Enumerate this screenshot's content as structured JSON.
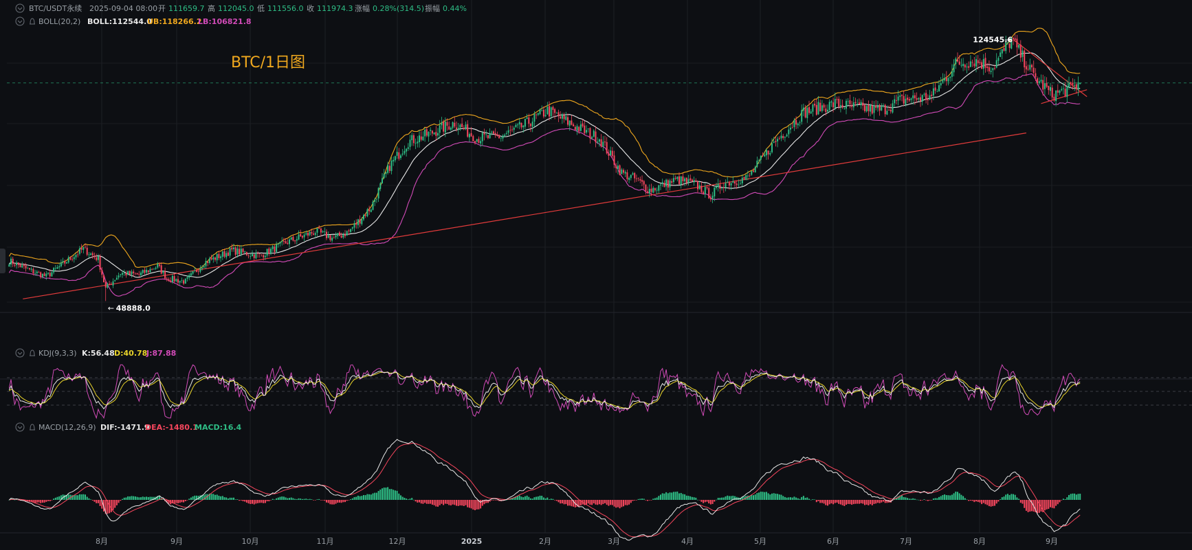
{
  "header": {
    "symbol": "BTC/USDT永续",
    "datetime": "2025-09-04 08:00",
    "open_label": "开",
    "open": "111659.7",
    "high_label": "高",
    "high": "112045.0",
    "low_label": "低",
    "low": "111556.0",
    "close_label": "收",
    "close": "111974.3",
    "change_label": "涨幅",
    "change": "0.28%(314.5)",
    "amplitude_label": "振幅",
    "amplitude": "0.44%"
  },
  "boll": {
    "name": "BOLL(20,2)",
    "mid": "BOLL:112544.0",
    "ub": "UB:118266.2",
    "lb": "LB:106821.8"
  },
  "kdj": {
    "name": "KDJ(9,3,3)",
    "k": "K:56.48",
    "d": "D:40.78",
    "j": "J:87.88"
  },
  "macd": {
    "name": "MACD(12,26,9)",
    "dif": "DIF:-1471.9",
    "dea": "DEA:-1480.1",
    "macd": "MACD:16.4"
  },
  "annotation": {
    "title": "BTC/1日图",
    "high_mark": "124545.6",
    "low_mark": "48888.0"
  },
  "colors": {
    "bg": "#0d0f13",
    "up": "#2ebd85",
    "down": "#f6465d",
    "mid": "#e8e8e8",
    "ub": "#f0a81e",
    "lb": "#d24bb8",
    "trend": "#e23b3b",
    "k": "#e8e8e8",
    "d": "#e8d32a",
    "j": "#d24bb8",
    "text": "#9aa0a6",
    "title": "#f0a81e"
  },
  "chart_data": {
    "type": "candlestick",
    "x_ticks": [
      "8月",
      "9月",
      "10月",
      "11月",
      "12月",
      "2025",
      "2月",
      "3月",
      "4月",
      "5月",
      "6月",
      "7月",
      "8月",
      "9月"
    ],
    "price_keypoints": [
      [
        0,
        60500
      ],
      [
        10,
        58000
      ],
      [
        20,
        56000
      ],
      [
        30,
        60000
      ],
      [
        40,
        64000
      ],
      [
        48,
        61000
      ],
      [
        52,
        52500
      ],
      [
        60,
        57000
      ],
      [
        70,
        56500
      ],
      [
        80,
        59000
      ],
      [
        85,
        55500
      ],
      [
        95,
        54500
      ],
      [
        105,
        60000
      ],
      [
        120,
        63500
      ],
      [
        135,
        62000
      ],
      [
        150,
        66000
      ],
      [
        165,
        69000
      ],
      [
        175,
        67000
      ],
      [
        183,
        69000
      ],
      [
        195,
        76000
      ],
      [
        205,
        88000
      ],
      [
        215,
        95000
      ],
      [
        225,
        97000
      ],
      [
        240,
        100500
      ],
      [
        252,
        96000
      ],
      [
        265,
        96500
      ],
      [
        275,
        99000
      ],
      [
        290,
        104000
      ],
      [
        300,
        101000
      ],
      [
        310,
        98000
      ],
      [
        318,
        96000
      ],
      [
        330,
        86000
      ],
      [
        338,
        84000
      ],
      [
        345,
        81000
      ],
      [
        360,
        84000
      ],
      [
        370,
        82500
      ],
      [
        378,
        79500
      ],
      [
        385,
        83000
      ],
      [
        398,
        84500
      ],
      [
        412,
        94500
      ],
      [
        428,
        103500
      ],
      [
        445,
        106000
      ],
      [
        455,
        105000
      ],
      [
        470,
        104000
      ],
      [
        480,
        107000
      ],
      [
        497,
        108000
      ],
      [
        510,
        117500
      ],
      [
        520,
        118500
      ],
      [
        530,
        116500
      ],
      [
        535,
        120500
      ],
      [
        540,
        124545.6
      ],
      [
        552,
        114000
      ],
      [
        562,
        108500
      ],
      [
        572,
        110500
      ],
      [
        577,
        111974.3
      ]
    ],
    "price_range": [
      45000,
      130000
    ],
    "last_close": 111974.3,
    "high": 124545.6,
    "low": 48888.0,
    "trendline": [
      [
        0,
        49500
      ],
      [
        548,
        97500
      ]
    ],
    "indicators": [
      "BOLL(20,2)",
      "KDJ(9,3,3)",
      "MACD(12,26,9)"
    ]
  }
}
